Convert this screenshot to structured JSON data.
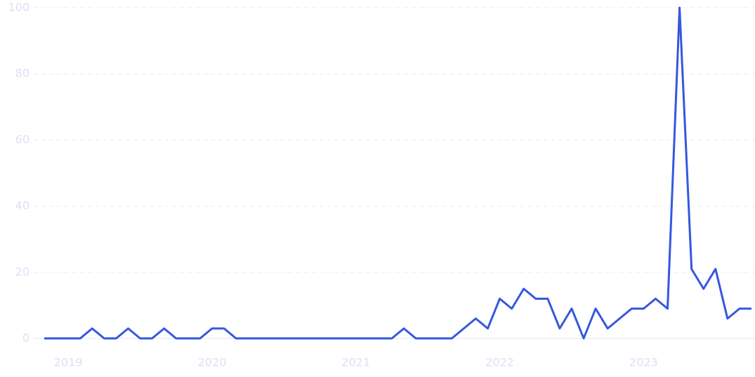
{
  "chart_data": {
    "type": "line",
    "categories": [
      null,
      null,
      "2019",
      null,
      null,
      null,
      null,
      null,
      null,
      null,
      null,
      null,
      null,
      null,
      "2020",
      null,
      null,
      null,
      null,
      null,
      null,
      null,
      null,
      null,
      null,
      null,
      "2021",
      null,
      null,
      null,
      null,
      null,
      null,
      null,
      null,
      null,
      null,
      null,
      "2022",
      null,
      null,
      null,
      null,
      null,
      null,
      null,
      null,
      null,
      null,
      null,
      "2023",
      null,
      null,
      null,
      null,
      null,
      null,
      null,
      null,
      null
    ],
    "series": [
      {
        "color": "#3557e0",
        "values": [
          0,
          0,
          0,
          0,
          3,
          0,
          0,
          3,
          0,
          0,
          3,
          0,
          0,
          0,
          3,
          3,
          0,
          0,
          0,
          0,
          0,
          0,
          0,
          0,
          0,
          0,
          0,
          0,
          0,
          0,
          3,
          0,
          0,
          0,
          0,
          3,
          6,
          3,
          12,
          9,
          15,
          12,
          12,
          3,
          9,
          0,
          9,
          3,
          6,
          9,
          9,
          12,
          9,
          100,
          21,
          15,
          21,
          6,
          9,
          9
        ]
      }
    ],
    "ylim": [
      0,
      100
    ],
    "yticks": [
      0,
      20,
      40,
      60,
      80,
      100
    ],
    "grid": true
  }
}
